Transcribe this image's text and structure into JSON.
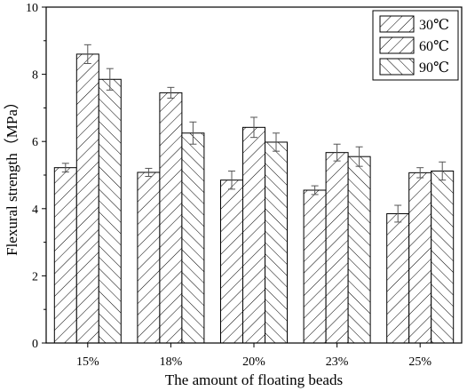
{
  "chart_data": {
    "type": "bar",
    "xlabel": "The amount of floating beads",
    "ylabel": "Flexural strength（MPa）",
    "categories": [
      "15%",
      "18%",
      "20%",
      "23%",
      "25%"
    ],
    "ylim": [
      0,
      10
    ],
    "yticks": [
      0,
      2,
      4,
      6,
      8,
      10
    ],
    "grid": false,
    "legend_position": "top-right",
    "series": [
      {
        "name": "30℃",
        "values": [
          5.22,
          5.08,
          4.85,
          4.55,
          3.85
        ],
        "errors": [
          0.13,
          0.12,
          0.27,
          0.13,
          0.25
        ],
        "hatch": "forward"
      },
      {
        "name": "60℃",
        "values": [
          8.6,
          7.45,
          6.42,
          5.67,
          5.07
        ],
        "errors": [
          0.28,
          0.16,
          0.3,
          0.25,
          0.15
        ],
        "hatch": "forward"
      },
      {
        "name": "90℃",
        "values": [
          7.85,
          6.25,
          5.98,
          5.55,
          5.12
        ],
        "errors": [
          0.32,
          0.33,
          0.27,
          0.29,
          0.27
        ],
        "hatch": "backward"
      }
    ],
    "colors": {
      "bar_fill": "#ffffff",
      "stroke": "#000000",
      "error_bar": "#555555"
    }
  }
}
